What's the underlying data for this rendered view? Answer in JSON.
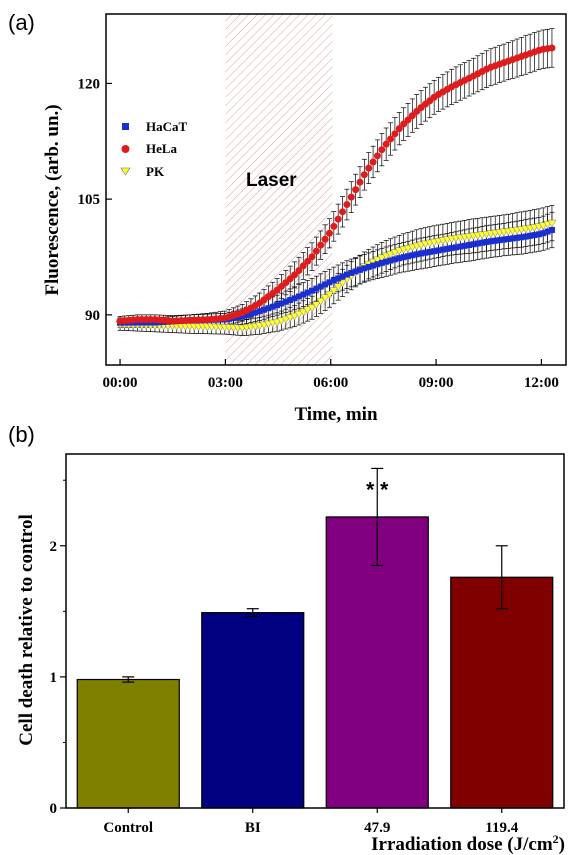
{
  "chart_data": [
    {
      "panel_label": "(a)",
      "type": "scatter",
      "xlabel": "Time, min",
      "ylabel": "Fluorescence, (arb. un.)",
      "x_ticks": [
        "00:00",
        "03:00",
        "06:00",
        "09:00",
        "12:00"
      ],
      "x_tick_values": [
        0,
        3,
        6,
        9,
        12
      ],
      "y_ticks": [
        "90",
        "105",
        "120"
      ],
      "y_tick_values": [
        90,
        105,
        120
      ],
      "xlim": [
        -0.4,
        12.7
      ],
      "ylim": [
        83.5,
        129
      ],
      "x_unit": "min",
      "shaded_region": {
        "x_start": 3.0,
        "x_end": 6.05,
        "label": "Laser"
      },
      "legend_position": "upper-left",
      "series": [
        {
          "name": "HaCaT",
          "marker": "square",
          "color": "#1a2fd1",
          "x": [
            0.0,
            1.0,
            2.0,
            3.0,
            3.5,
            4.0,
            4.5,
            5.0,
            5.5,
            6.0,
            6.5,
            7.0,
            7.5,
            8.0,
            8.5,
            9.0,
            9.5,
            10.0,
            10.5,
            11.0,
            11.5,
            12.0,
            12.3
          ],
          "y": [
            89.0,
            89.0,
            89.3,
            89.4,
            89.8,
            90.5,
            91.3,
            92.2,
            93.2,
            94.3,
            95.3,
            96.1,
            96.8,
            97.4,
            97.9,
            98.3,
            98.7,
            99.1,
            99.5,
            99.8,
            100.1,
            100.5,
            101.0
          ],
          "err": [
            0.6,
            0.6,
            0.7,
            0.8,
            1.0,
            1.2,
            1.3,
            1.5,
            1.6,
            1.7,
            1.8,
            1.8,
            1.9,
            1.9,
            2.0,
            2.0,
            2.0,
            2.1,
            2.1,
            2.1,
            2.2,
            2.2,
            2.3
          ]
        },
        {
          "name": "HeLa",
          "marker": "circle",
          "color": "#e01b1b",
          "x": [
            0.0,
            0.5,
            1.0,
            1.5,
            2.0,
            2.5,
            3.0,
            3.5,
            4.0,
            4.5,
            5.0,
            5.5,
            6.0,
            6.5,
            7.0,
            7.5,
            8.0,
            8.5,
            9.0,
            9.5,
            10.0,
            10.5,
            11.0,
            11.5,
            12.0,
            12.3
          ],
          "y": [
            89.2,
            89.4,
            89.4,
            89.2,
            89.3,
            89.4,
            89.6,
            90.3,
            91.6,
            93.3,
            95.3,
            97.7,
            100.8,
            104.6,
            108.5,
            111.7,
            114.4,
            116.6,
            118.4,
            119.7,
            120.8,
            122.0,
            122.8,
            123.6,
            124.4,
            124.6
          ],
          "err": [
            0.6,
            0.6,
            0.6,
            0.7,
            0.7,
            0.8,
            0.9,
            1.1,
            1.3,
            1.5,
            1.7,
            1.8,
            1.9,
            2.0,
            2.0,
            2.1,
            2.1,
            2.2,
            2.2,
            2.3,
            2.3,
            2.4,
            2.4,
            2.5,
            2.5,
            2.5
          ]
        },
        {
          "name": "PK",
          "marker": "triangle-down",
          "color": "#ffff33",
          "x": [
            0.0,
            1.0,
            2.0,
            3.0,
            3.5,
            4.0,
            4.5,
            5.0,
            5.5,
            6.0,
            6.5,
            7.0,
            7.5,
            8.0,
            8.5,
            9.0,
            9.5,
            10.0,
            10.5,
            11.0,
            11.5,
            12.0,
            12.3
          ],
          "y": [
            88.8,
            88.6,
            88.5,
            88.4,
            88.3,
            88.6,
            89.1,
            89.9,
            91.0,
            92.8,
            94.8,
            96.4,
            97.5,
            98.4,
            99.0,
            99.5,
            99.9,
            100.2,
            100.5,
            100.8,
            101.1,
            101.5,
            101.9
          ],
          "err": [
            0.8,
            0.8,
            0.9,
            0.9,
            1.0,
            1.1,
            1.2,
            1.4,
            1.5,
            1.7,
            1.8,
            1.9,
            2.0,
            2.0,
            2.1,
            2.1,
            2.1,
            2.2,
            2.2,
            2.2,
            2.3,
            2.3,
            2.3
          ]
        }
      ]
    },
    {
      "panel_label": "(b)",
      "type": "bar",
      "xlabel": "Irradiation dose (J/cm",
      "xlabel_superscript": "2",
      "xlabel_suffix": ")",
      "ylabel": "Cell death relative to control",
      "categories": [
        "Control",
        "BI",
        "47.9",
        "119.4"
      ],
      "values": [
        0.98,
        1.49,
        2.22,
        1.76
      ],
      "errors": [
        0.02,
        0.03,
        0.37,
        0.24
      ],
      "colors": [
        "#808000",
        "#000080",
        "#800080",
        "#800000"
      ],
      "annotation": {
        "category": "47.9",
        "text": "* *"
      },
      "y_ticks": [
        "0",
        "1",
        "2"
      ],
      "y_tick_values": [
        0,
        1,
        2
      ],
      "ylim": [
        0,
        2.7
      ]
    }
  ]
}
